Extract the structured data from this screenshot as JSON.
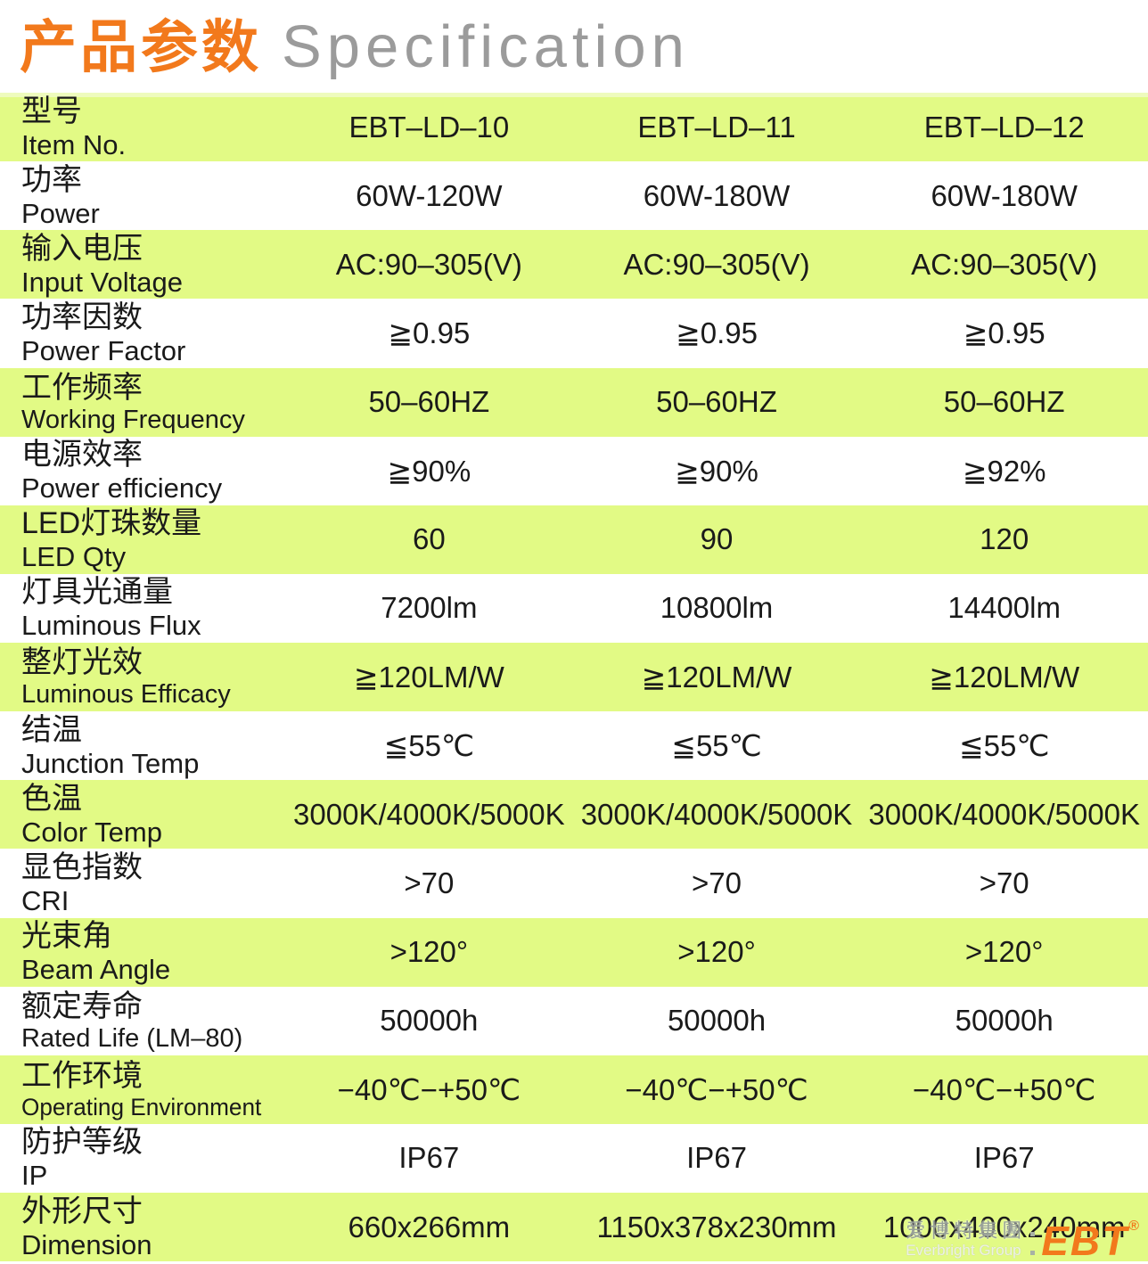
{
  "header": {
    "title_zh": "产品参数",
    "title_en": "Specification"
  },
  "table": {
    "rows": [
      {
        "label_zh": "型号",
        "label_en": "Item No.",
        "values": [
          "EBT–LD–10",
          "EBT–LD–11",
          "EBT–LD–12"
        ]
      },
      {
        "label_zh": "功率",
        "label_en": "Power",
        "values": [
          "60W-120W",
          "60W-180W",
          "60W-180W"
        ]
      },
      {
        "label_zh": "输入电压",
        "label_en": "Input Voltage",
        "values": [
          "AC:90–305(V)",
          "AC:90–305(V)",
          "AC:90–305(V)"
        ]
      },
      {
        "label_zh": "功率因数",
        "label_en": "Power Factor",
        "values": [
          "≧0.95",
          "≧0.95",
          "≧0.95"
        ]
      },
      {
        "label_zh": "工作频率",
        "label_en": "Working Frequency",
        "values": [
          "50–60HZ",
          "50–60HZ",
          "50–60HZ"
        ]
      },
      {
        "label_zh": "电源效率",
        "label_en": "Power efficiency",
        "values": [
          "≧90%",
          "≧90%",
          "≧92%"
        ]
      },
      {
        "label_zh": "LED灯珠数量",
        "label_en": "LED Qty",
        "values": [
          "60",
          "90",
          "120"
        ]
      },
      {
        "label_zh": "灯具光通量",
        "label_en": "Luminous Flux",
        "values": [
          "7200lm",
          "10800lm",
          "14400lm"
        ]
      },
      {
        "label_zh": "整灯光效",
        "label_en": "Luminous Efficacy",
        "values": [
          "≧120LM/W",
          "≧120LM/W",
          "≧120LM/W"
        ]
      },
      {
        "label_zh": "结温",
        "label_en": "Junction Temp",
        "values": [
          "≦55℃",
          "≦55℃",
          "≦55℃"
        ]
      },
      {
        "label_zh": "色温",
        "label_en": "Color Temp",
        "values": [
          "3000K/4000K/5000K",
          "3000K/4000K/5000K",
          "3000K/4000K/5000K"
        ]
      },
      {
        "label_zh": "显色指数",
        "label_en": "CRI",
        "values": [
          ">70",
          ">70",
          ">70"
        ]
      },
      {
        "label_zh": "光束角",
        "label_en": "Beam Angle",
        "values": [
          ">120°",
          ">120°",
          ">120°"
        ]
      },
      {
        "label_zh": "额定寿命",
        "label_en": "Rated Life (LM–80)",
        "values": [
          "50000h",
          "50000h",
          "50000h"
        ]
      },
      {
        "label_zh": "工作环境",
        "label_en": "Operating Environment",
        "values": [
          "−40℃−+50℃",
          "−40℃−+50℃",
          "−40℃−+50℃"
        ]
      },
      {
        "label_zh": "防护等级",
        "label_en": "IP",
        "values": [
          "IP67",
          "IP67",
          "IP67"
        ]
      },
      {
        "label_zh": "外形尺寸",
        "label_en": "Dimension",
        "values": [
          "660x266mm",
          "1150x378x230mm",
          "1000x400x240mm"
        ]
      }
    ]
  },
  "logo": {
    "zh": "爱博特集團",
    "en": "Everbright Group",
    "brand": "EBT",
    "reg": "®"
  },
  "colors": {
    "orange": "#f2791c",
    "lime": "#e2fa85",
    "title_gray": "#9b9b9b"
  }
}
